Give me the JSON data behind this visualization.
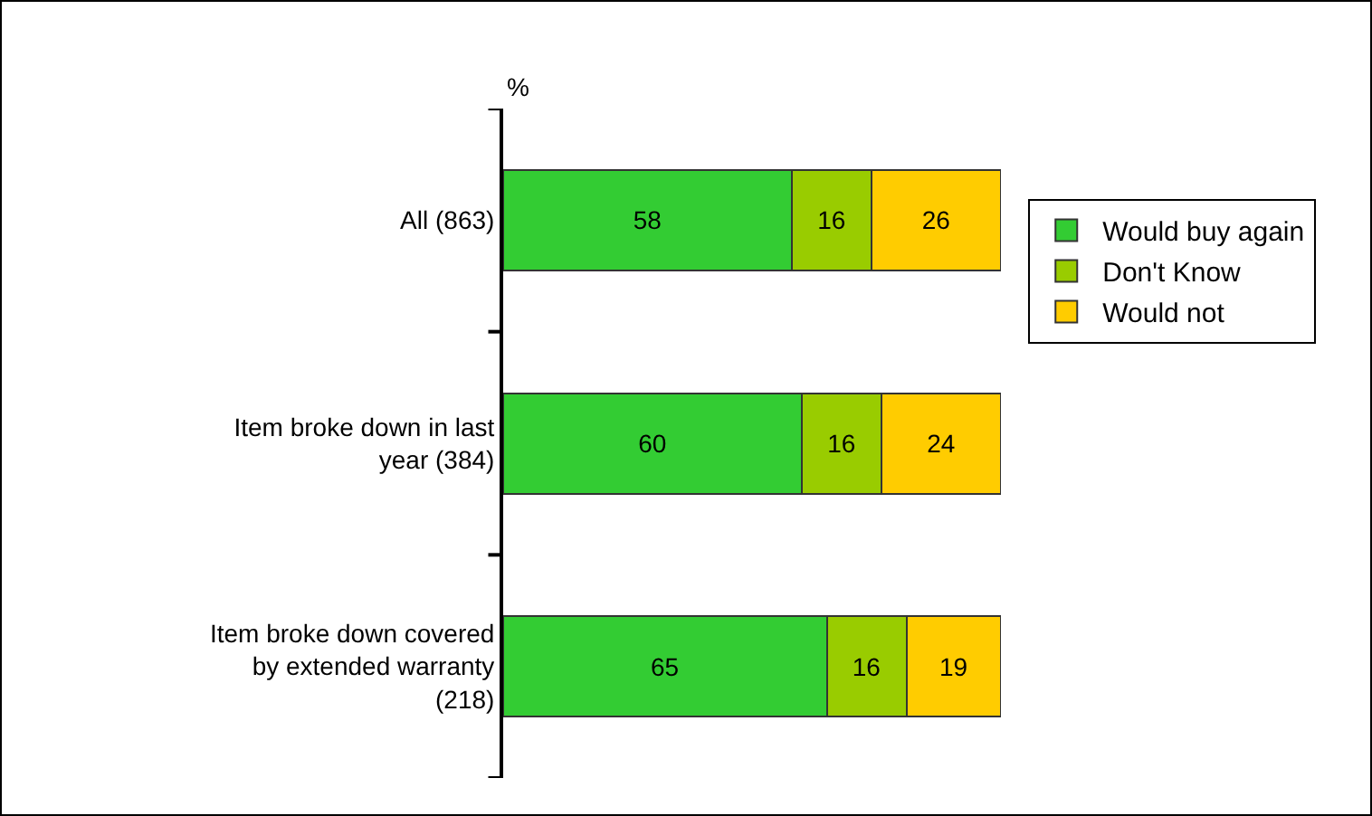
{
  "chart_data": {
    "type": "bar",
    "orientation": "horizontal",
    "stacked": true,
    "ylabel": "%",
    "categories": [
      "All (863)",
      "Item broke down in last year (384)",
      "Item broke down covered by extended warranty (218)"
    ],
    "series": [
      {
        "name": "Would buy again",
        "color": "#33cc33",
        "values": [
          58,
          60,
          65
        ]
      },
      {
        "name": "Don't Know",
        "color": "#99cc00",
        "values": [
          16,
          16,
          16
        ]
      },
      {
        "name": "Would not",
        "color": "#ffcc00",
        "values": [
          26,
          24,
          19
        ]
      }
    ],
    "xlim": [
      0,
      100
    ],
    "tick_labels": "y",
    "data_labels": true,
    "grid": false,
    "legend": "right"
  }
}
